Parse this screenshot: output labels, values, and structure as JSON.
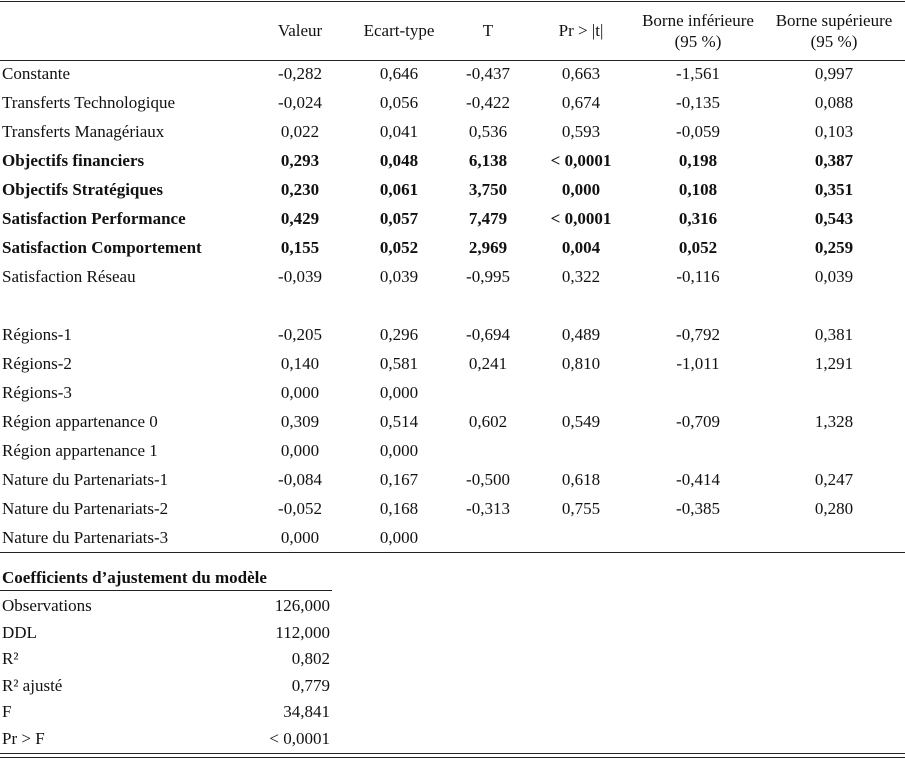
{
  "headers": {
    "valeur": "Valeur",
    "ecart": "Ecart-type",
    "t": "T",
    "pr": "Pr > |t|",
    "binf_1": "Borne inférieure",
    "binf_2": "(95 %)",
    "bsup_1": "Borne supérieure",
    "bsup_2": "(95 %)"
  },
  "rows": [
    {
      "label": "Constante",
      "valeur": "-0,282",
      "ecart": "0,646",
      "t": "-0,437",
      "pr": "0,663",
      "binf": "-1,561",
      "bsup": "0,997",
      "bold": false
    },
    {
      "label": "Transferts Technologique",
      "valeur": "-0,024",
      "ecart": "0,056",
      "t": "-0,422",
      "pr": "0,674",
      "binf": "-0,135",
      "bsup": "0,088",
      "bold": false
    },
    {
      "label": "Transferts Managériaux",
      "valeur": "0,022",
      "ecart": "0,041",
      "t": "0,536",
      "pr": "0,593",
      "binf": "-0,059",
      "bsup": "0,103",
      "bold": false
    },
    {
      "label": "Objectifs financiers",
      "valeur": "0,293",
      "ecart": "0,048",
      "t": "6,138",
      "pr": "< 0,0001",
      "binf": "0,198",
      "bsup": "0,387",
      "bold": true
    },
    {
      "label": "Objectifs Stratégiques",
      "valeur": "0,230",
      "ecart": "0,061",
      "t": "3,750",
      "pr": "0,000",
      "binf": "0,108",
      "bsup": "0,351",
      "bold": true
    },
    {
      "label": "Satisfaction Performance",
      "valeur": "0,429",
      "ecart": "0,057",
      "t": "7,479",
      "pr": "< 0,0001",
      "binf": "0,316",
      "bsup": "0,543",
      "bold": true
    },
    {
      "label": "Satisfaction Comportement",
      "valeur": "0,155",
      "ecart": "0,052",
      "t": "2,969",
      "pr": "0,004",
      "binf": "0,052",
      "bsup": "0,259",
      "bold": true
    },
    {
      "label": "Satisfaction Réseau",
      "valeur": "-0,039",
      "ecart": "0,039",
      "t": "-0,995",
      "pr": "0,322",
      "binf": "-0,116",
      "bsup": "0,039",
      "bold": false
    },
    {
      "gap": true
    },
    {
      "label": "Régions-1",
      "valeur": "-0,205",
      "ecart": "0,296",
      "t": "-0,694",
      "pr": "0,489",
      "binf": "-0,792",
      "bsup": "0,381",
      "bold": false
    },
    {
      "label": "Régions-2",
      "valeur": "0,140",
      "ecart": "0,581",
      "t": "0,241",
      "pr": "0,810",
      "binf": "-1,011",
      "bsup": "1,291",
      "bold": false
    },
    {
      "label": "Régions-3",
      "valeur": "0,000",
      "ecart": "0,000",
      "t": "",
      "pr": "",
      "binf": "",
      "bsup": "",
      "bold": false
    },
    {
      "label": "Région appartenance 0",
      "valeur": "0,309",
      "ecart": "0,514",
      "t": "0,602",
      "pr": "0,549",
      "binf": "-0,709",
      "bsup": "1,328",
      "bold": false
    },
    {
      "label": "Région appartenance 1",
      "valeur": "0,000",
      "ecart": "0,000",
      "t": "",
      "pr": "",
      "binf": "",
      "bsup": "",
      "bold": false
    },
    {
      "label": "Nature du Partenariats-1",
      "valeur": "-0,084",
      "ecart": "0,167",
      "t": "-0,500",
      "pr": "0,618",
      "binf": "-0,414",
      "bsup": "0,247",
      "bold": false
    },
    {
      "label": "Nature du Partenariats-2",
      "valeur": "-0,052",
      "ecart": "0,168",
      "t": "-0,313",
      "pr": "0,755",
      "binf": "-0,385",
      "bsup": "0,280",
      "bold": false
    },
    {
      "label": "Nature du Partenariats-3",
      "valeur": "0,000",
      "ecart": "0,000",
      "t": "",
      "pr": "",
      "binf": "",
      "bsup": "",
      "bold": false
    }
  ],
  "fit": {
    "title": "Coefficients d’ajustement du modèle",
    "rows": [
      {
        "label": "Observations",
        "value": "126,000"
      },
      {
        "label": "DDL",
        "value": "112,000"
      },
      {
        "label": "R²",
        "value": "0,802"
      },
      {
        "label": "R² ajusté",
        "value": "0,779"
      },
      {
        "label": "F",
        "value": "34,841"
      },
      {
        "label": "Pr > F",
        "value": "< 0,0001"
      }
    ]
  }
}
